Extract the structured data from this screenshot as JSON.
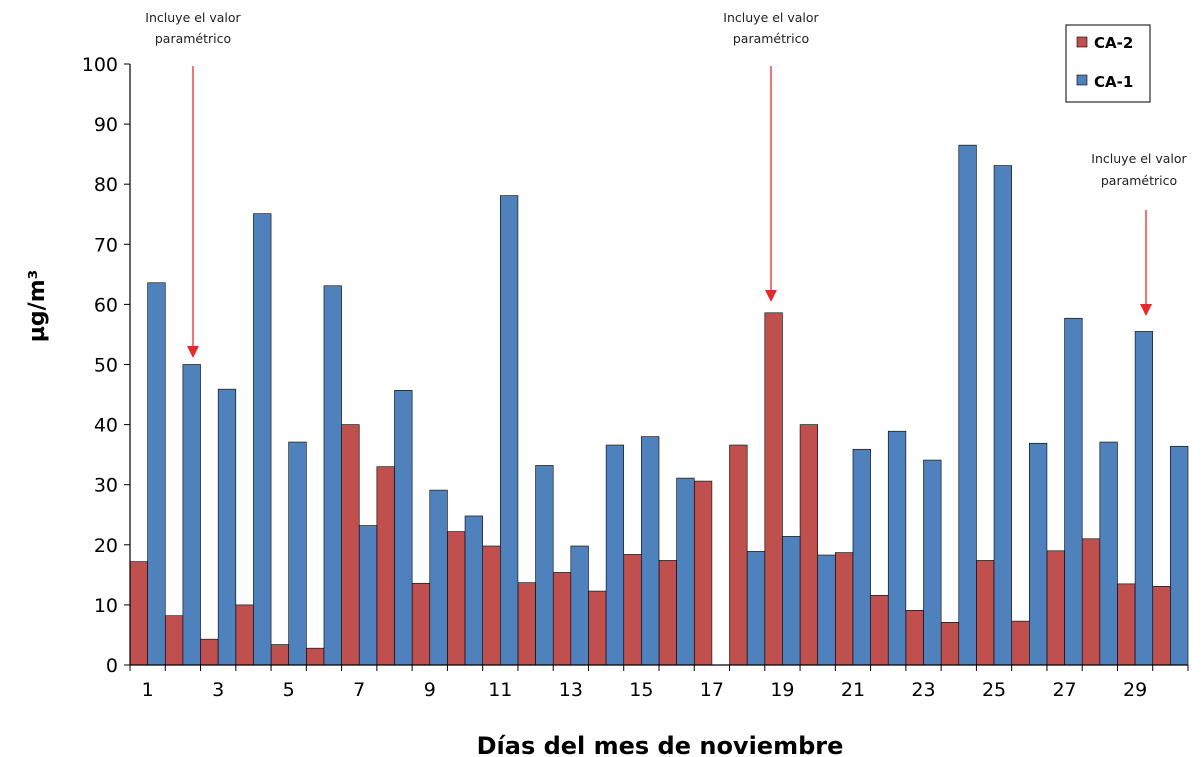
{
  "chart_data": {
    "type": "bar",
    "title": "",
    "xlabel": "Días del mes de noviembre",
    "ylabel": "µg/m³",
    "ylim": [
      0,
      100
    ],
    "y_ticks": [
      0,
      10,
      20,
      30,
      40,
      50,
      60,
      70,
      80,
      90,
      100
    ],
    "x_tick_labels": [
      "1",
      "3",
      "5",
      "7",
      "9",
      "11",
      "13",
      "15",
      "17",
      "19",
      "21",
      "23",
      "25",
      "27",
      "29"
    ],
    "legend_position": "top-right",
    "grid": false,
    "series": [
      {
        "name": "CA-2",
        "color": "#C0504D",
        "values": [
          17.2,
          8.2,
          4.3,
          10.0,
          3.4,
          2.8,
          40.0,
          33.0,
          13.6,
          22.2,
          19.8,
          13.7,
          15.4,
          12.3,
          18.4,
          17.4,
          30.6,
          36.6,
          58.6,
          40.0,
          18.7,
          11.6,
          9.1,
          7.1,
          17.4,
          7.3,
          19.0,
          21.0,
          13.5,
          13.1
        ]
      },
      {
        "name": "CA-1",
        "color": "#4F81BD",
        "values": [
          63.6,
          50.0,
          45.9,
          75.1,
          37.1,
          63.1,
          23.2,
          45.7,
          29.1,
          24.8,
          78.1,
          33.2,
          19.8,
          36.6,
          38.0,
          31.1,
          null,
          18.9,
          21.4,
          18.3,
          35.9,
          38.9,
          34.1,
          86.5,
          83.1,
          36.9,
          57.7,
          37.1,
          55.5,
          36.4
        ]
      }
    ],
    "annotations": [
      {
        "day": 2,
        "line1": "Incluye el valor",
        "line2": "paramétrico"
      },
      {
        "day": 19,
        "line1": "Incluye el valor",
        "line2": "paramétrico"
      },
      {
        "day": 29,
        "line1": "Incluye el valor",
        "line2": "paramétrico"
      }
    ]
  }
}
